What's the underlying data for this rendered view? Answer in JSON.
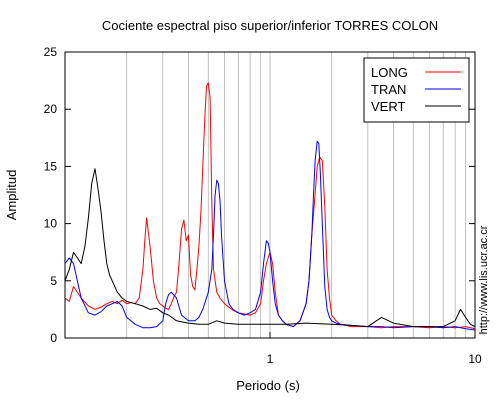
{
  "chart_data": {
    "type": "line",
    "title": "Cociente espectral piso superior/inferior  TORRES COLON",
    "xlabel": "Periodo (s)",
    "ylabel": "Amplitud",
    "xscale": "log",
    "xlim": [
      0.1,
      10
    ],
    "ylim": [
      0,
      25
    ],
    "y_ticks": [
      0,
      5,
      10,
      15,
      20,
      25
    ],
    "x_ticks": [
      1,
      10
    ],
    "x_tick_labels": [
      "1",
      "10"
    ],
    "grid": "vertical log gridlines",
    "legend_position": "top-right",
    "series": [
      {
        "name": "LONG",
        "color": "#ff0000",
        "x": [
          0.1,
          0.105,
          0.11,
          0.12,
          0.13,
          0.14,
          0.15,
          0.16,
          0.17,
          0.18,
          0.19,
          0.2,
          0.21,
          0.22,
          0.23,
          0.24,
          0.245,
          0.25,
          0.26,
          0.27,
          0.28,
          0.29,
          0.3,
          0.31,
          0.32,
          0.33,
          0.34,
          0.35,
          0.36,
          0.37,
          0.38,
          0.39,
          0.4,
          0.41,
          0.42,
          0.43,
          0.44,
          0.45,
          0.46,
          0.47,
          0.48,
          0.49,
          0.5,
          0.51,
          0.52,
          0.53,
          0.55,
          0.57,
          0.6,
          0.65,
          0.7,
          0.75,
          0.8,
          0.85,
          0.9,
          0.93,
          0.96,
          1.0,
          1.03,
          1.06,
          1.1,
          1.15,
          1.2,
          1.3,
          1.4,
          1.5,
          1.55,
          1.6,
          1.65,
          1.7,
          1.75,
          1.8,
          1.85,
          1.9,
          1.95,
          2.0,
          2.1,
          2.2,
          2.5,
          3.0,
          3.5,
          4.0,
          5.0,
          6.0,
          7.0,
          8.0,
          9.0,
          10.0
        ],
        "y": [
          3.5,
          3.2,
          4.5,
          3.5,
          2.8,
          2.5,
          2.7,
          3.0,
          3.2,
          3.0,
          3.3,
          3.0,
          3.1,
          3.0,
          3.5,
          6.0,
          8.5,
          10.5,
          8.0,
          5.0,
          3.5,
          3.0,
          2.8,
          2.6,
          2.5,
          3.0,
          3.6,
          4.0,
          6.5,
          9.5,
          10.3,
          8.5,
          9.0,
          5.5,
          4.5,
          4.2,
          6.0,
          8.0,
          11.0,
          15.0,
          19.0,
          22.0,
          22.3,
          21.0,
          12.0,
          6.0,
          4.0,
          3.5,
          3.0,
          2.5,
          2.2,
          2.1,
          2.0,
          2.2,
          3.0,
          5.0,
          6.5,
          7.5,
          6.5,
          4.0,
          2.0,
          1.5,
          1.2,
          1.0,
          1.5,
          3.0,
          5.0,
          9.0,
          12.0,
          15.0,
          15.8,
          15.5,
          11.5,
          6.0,
          3.5,
          2.0,
          1.5,
          1.2,
          1.0,
          1.0,
          0.9,
          1.0,
          1.0,
          0.9,
          1.0,
          0.9,
          1.0,
          0.8
        ]
      },
      {
        "name": "TRAN",
        "color": "#0000ff",
        "x": [
          0.1,
          0.105,
          0.11,
          0.12,
          0.13,
          0.14,
          0.15,
          0.16,
          0.17,
          0.18,
          0.19,
          0.2,
          0.22,
          0.24,
          0.26,
          0.28,
          0.3,
          0.31,
          0.32,
          0.33,
          0.35,
          0.37,
          0.4,
          0.43,
          0.45,
          0.47,
          0.5,
          0.52,
          0.53,
          0.54,
          0.55,
          0.56,
          0.57,
          0.58,
          0.6,
          0.63,
          0.66,
          0.7,
          0.75,
          0.8,
          0.85,
          0.9,
          0.93,
          0.96,
          0.98,
          1.0,
          1.03,
          1.06,
          1.1,
          1.15,
          1.2,
          1.3,
          1.4,
          1.5,
          1.55,
          1.6,
          1.63,
          1.66,
          1.7,
          1.73,
          1.76,
          1.8,
          1.85,
          1.9,
          1.95,
          2.0,
          2.1,
          2.2,
          2.5,
          3.0,
          3.5,
          4.0,
          5.0,
          6.0,
          7.0,
          8.0,
          9.0,
          10.0
        ],
        "y": [
          6.5,
          7.0,
          6.5,
          3.5,
          2.2,
          2.0,
          2.3,
          2.8,
          3.0,
          3.2,
          2.8,
          1.8,
          1.2,
          0.9,
          0.9,
          1.0,
          1.5,
          3.0,
          3.8,
          4.0,
          3.5,
          2.0,
          1.5,
          1.5,
          1.8,
          2.5,
          4.0,
          6.0,
          9.0,
          12.5,
          13.8,
          13.5,
          12.0,
          9.0,
          5.0,
          3.0,
          2.5,
          2.2,
          2.0,
          2.2,
          2.5,
          4.0,
          6.5,
          8.5,
          8.3,
          7.5,
          5.0,
          3.0,
          2.0,
          1.5,
          1.2,
          1.0,
          1.5,
          3.0,
          5.0,
          9.0,
          12.5,
          15.5,
          17.2,
          17.0,
          14.5,
          10.0,
          4.5,
          2.5,
          1.8,
          1.5,
          1.3,
          1.2,
          1.1,
          1.0,
          1.0,
          0.9,
          1.0,
          1.0,
          0.9,
          1.0,
          0.8,
          0.7
        ]
      },
      {
        "name": "VERT",
        "color": "#000000",
        "x": [
          0.1,
          0.105,
          0.11,
          0.115,
          0.12,
          0.125,
          0.13,
          0.135,
          0.14,
          0.145,
          0.15,
          0.155,
          0.16,
          0.165,
          0.17,
          0.18,
          0.19,
          0.2,
          0.22,
          0.24,
          0.26,
          0.28,
          0.3,
          0.32,
          0.35,
          0.4,
          0.45,
          0.5,
          0.55,
          0.6,
          0.7,
          0.8,
          1.0,
          1.2,
          1.5,
          2.0,
          2.5,
          3.0,
          3.5,
          4.0,
          5.0,
          6.0,
          7.0,
          8.0,
          8.5,
          9.0,
          9.5,
          10.0
        ],
        "y": [
          5.0,
          6.0,
          7.5,
          7.0,
          6.5,
          8.0,
          10.5,
          13.5,
          14.8,
          13.0,
          11.0,
          8.5,
          6.5,
          5.5,
          5.0,
          4.0,
          3.5,
          3.2,
          3.0,
          2.8,
          2.5,
          2.6,
          2.2,
          2.0,
          1.5,
          1.3,
          1.2,
          1.2,
          1.5,
          1.3,
          1.2,
          1.2,
          1.2,
          1.2,
          1.3,
          1.2,
          1.1,
          1.0,
          1.8,
          1.3,
          1.0,
          1.0,
          1.0,
          1.5,
          2.5,
          1.8,
          1.2,
          1.0
        ]
      }
    ]
  },
  "watermark": "http://www.lis.ucr.ac.cr"
}
